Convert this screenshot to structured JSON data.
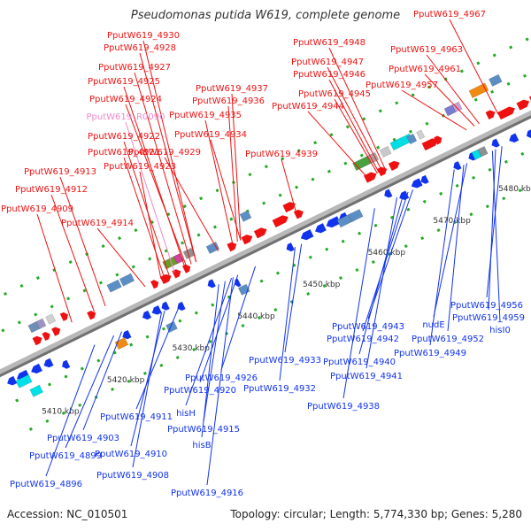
{
  "title": "Pseudomonas putida W619, complete genome",
  "footer": {
    "accession": "Accession: NC_010501",
    "summary": "Topology: circular; Length: 5,774,330 bp; Genes: 5,280"
  },
  "colors": {
    "forward": "#ee1111",
    "reverse": "#1133ee",
    "rna_label": "#ee88cc",
    "axis": "#909090",
    "tick_minor": "#22aa22"
  },
  "scale": {
    "ticks": [
      "5410 kbp",
      "5420 kbp",
      "5430 kbp",
      "5440 kbp",
      "5450 kbp",
      "5460 kbp",
      "5470 kbp",
      "5480 kbp"
    ]
  },
  "labels_top": [
    "PputW619_4930",
    "PputW619_4928",
    "PputW619_4927",
    "PputW619_4925",
    "PputW619_4924",
    "PputW619_R0090",
    "PputW619_4922",
    "PputW619_4921",
    "PputW619_4923",
    "PputW619_4913",
    "PputW619_4912",
    "PputW619_4909",
    "PputW619_4914",
    "PputW619_4937",
    "PputW619_4936",
    "PputW619_4935",
    "PputW619_4934",
    "PputW619_4929",
    "PputW619_4939",
    "PputW619_4948",
    "PputW619_4947",
    "PputW619_4946",
    "PputW619_4945",
    "PputW619_4944",
    "PputW619_4967",
    "PputW619_4963",
    "PputW619_4961",
    "PputW619_4957"
  ],
  "labels_bottom": [
    "PputW619_4956",
    "PputW619_4959",
    "hisI0",
    "nudE",
    "PputW619_4952",
    "PputW619_4949",
    "PputW619_4943",
    "PputW619_4942",
    "PputW619_4940",
    "PputW619_4941",
    "PputW619_4938",
    "PputW619_4933",
    "PputW619_4932",
    "PputW619_4926",
    "PputW619_4920",
    "hisH",
    "PputW619_4915",
    "hisB",
    "PputW619_4911",
    "PputW619_4910",
    "PputW619_4903",
    "PputW619_4899",
    "PputW619_4908",
    "PputW619_4896",
    "PputW619_4916"
  ]
}
